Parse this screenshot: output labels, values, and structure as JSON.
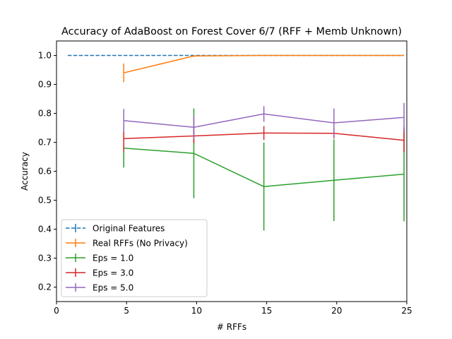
{
  "chart_data": {
    "type": "line",
    "title": "Accuracy of AdaBoost on Forest Cover 6/7 (RFF + Memb Unknown)",
    "xlabel": "# RFFs",
    "ylabel": "Accuracy",
    "xlim": [
      0,
      25
    ],
    "ylim": [
      0.15,
      1.05
    ],
    "xticks": [
      0,
      5,
      10,
      15,
      20,
      25
    ],
    "yticks": [
      0.2,
      0.3,
      0.4,
      0.5,
      0.6,
      0.7,
      0.8,
      0.9,
      1.0
    ],
    "xtick_labels": [
      "0",
      "5",
      "10",
      "15",
      "20",
      "25"
    ],
    "ytick_labels": [
      "0.2",
      "0.3",
      "0.4",
      "0.5",
      "0.6",
      "0.7",
      "0.8",
      "0.9",
      "1.0"
    ],
    "grid": false,
    "legend_position": "lower-left",
    "series": [
      {
        "name": "Original Features",
        "color": "#1f77b4",
        "dashed": true,
        "x": [
          0.8,
          24.8
        ],
        "y": [
          1.0,
          1.0
        ],
        "err": [
          0,
          0
        ]
      },
      {
        "name": "Real RFFs (No Privacy)",
        "color": "#ff7f0e",
        "dashed": false,
        "x": [
          4.8,
          9.8,
          14.8,
          19.8,
          24.8
        ],
        "y": [
          0.94,
          0.998,
          1.0,
          1.0,
          1.0
        ],
        "err": [
          0.032,
          0.003,
          0.0,
          0.0,
          0.0
        ]
      },
      {
        "name": "Eps = 1.0",
        "color": "#2ca02c",
        "dashed": false,
        "x": [
          4.8,
          9.8,
          14.8,
          19.8,
          24.8
        ],
        "y": [
          0.68,
          0.662,
          0.547,
          0.569,
          0.59
        ],
        "err": [
          0.067,
          0.155,
          0.152,
          0.141,
          0.163
        ]
      },
      {
        "name": "Eps = 3.0",
        "color": "#d62728",
        "dashed": false,
        "x": [
          4.8,
          9.8,
          14.8,
          19.8,
          24.8
        ],
        "y": [
          0.713,
          0.722,
          0.732,
          0.731,
          0.707
        ],
        "err": [
          0.045,
          0.025,
          0.024,
          0.018,
          0.04
        ]
      },
      {
        "name": "Eps = 5.0",
        "color": "#9467bd",
        "dashed": false,
        "x": [
          4.8,
          9.8,
          14.8,
          19.8,
          24.8
        ],
        "y": [
          0.775,
          0.752,
          0.798,
          0.767,
          0.786
        ],
        "err": [
          0.04,
          0.04,
          0.027,
          0.05,
          0.05
        ]
      }
    ]
  }
}
